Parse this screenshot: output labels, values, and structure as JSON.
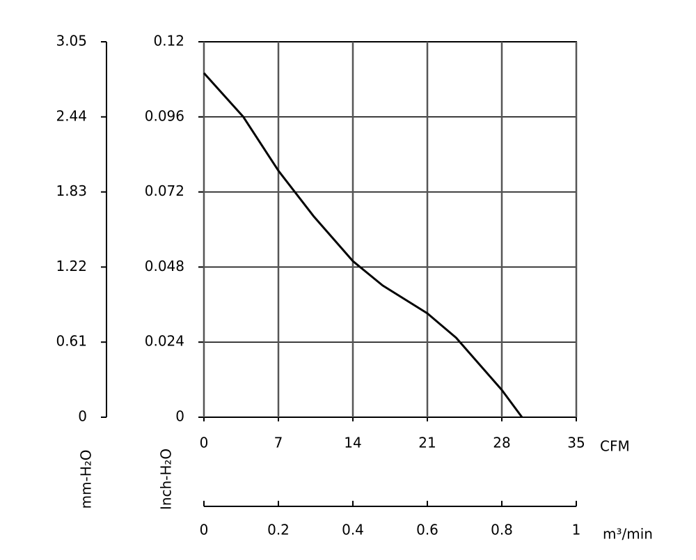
{
  "chart_data": {
    "type": "line",
    "x": [
      0,
      3.7,
      7,
      10.3,
      14,
      16.8,
      21,
      23.7,
      28,
      29.9
    ],
    "values": [
      0.11,
      0.096,
      0.0788,
      0.0643,
      0.0499,
      0.0421,
      0.0332,
      0.0254,
      0.0087,
      0
    ],
    "color": "#000000",
    "xlabel": "CFM",
    "ylabel": "Inch-H₂O",
    "y2label": "mm-H₂O",
    "x2label": "m³/min",
    "xlim": [
      0,
      35
    ],
    "xticks": [
      0,
      7,
      14,
      21,
      28,
      35
    ],
    "ylim": [
      0,
      0.12
    ],
    "yticks": [
      0,
      0.024,
      0.048,
      0.072,
      0.096,
      0.12
    ],
    "y2lim": [
      0,
      3.05
    ],
    "y2ticks": [
      0,
      0.61,
      1.22,
      1.83,
      2.44,
      3.05
    ],
    "x2lim": [
      0,
      1
    ],
    "x2ticks": [
      0,
      0.2,
      0.4,
      0.6,
      0.8,
      1
    ],
    "grid": true
  }
}
